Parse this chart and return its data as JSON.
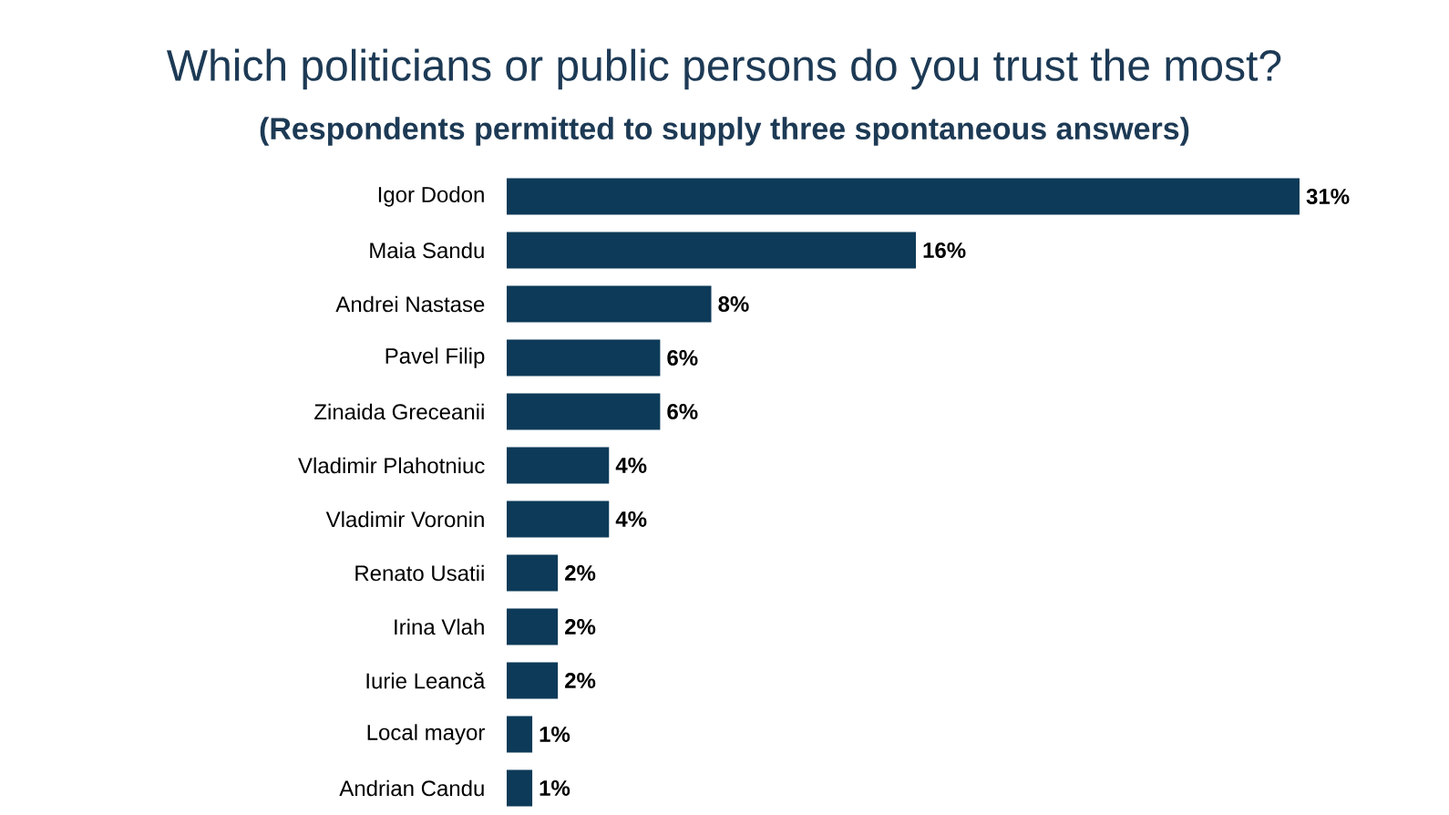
{
  "chart_data": {
    "type": "bar",
    "orientation": "horizontal",
    "title": "Which politicians or public persons do you trust the most?",
    "subtitle": "(Respondents permitted to supply three spontaneous answers)",
    "categories": [
      "Igor Dodon",
      "Maia Sandu",
      "Andrei Nastase",
      "Pavel Filip",
      "Zinaida Greceanii",
      "Vladimir Plahotniuc",
      "Vladimir Voronin",
      "Renato Usatii",
      "Irina Vlah",
      "Iurie Leancă",
      "Local mayor",
      "Andrian Candu"
    ],
    "values": [
      31,
      16,
      8,
      6,
      6,
      4,
      4,
      2,
      2,
      2,
      1,
      1
    ],
    "value_labels": [
      "31%",
      "16%",
      "8%",
      "6%",
      "6%",
      "4%",
      "4%",
      "2%",
      "2%",
      "2%",
      "1%",
      "1%"
    ],
    "color": "#0d3a58"
  }
}
